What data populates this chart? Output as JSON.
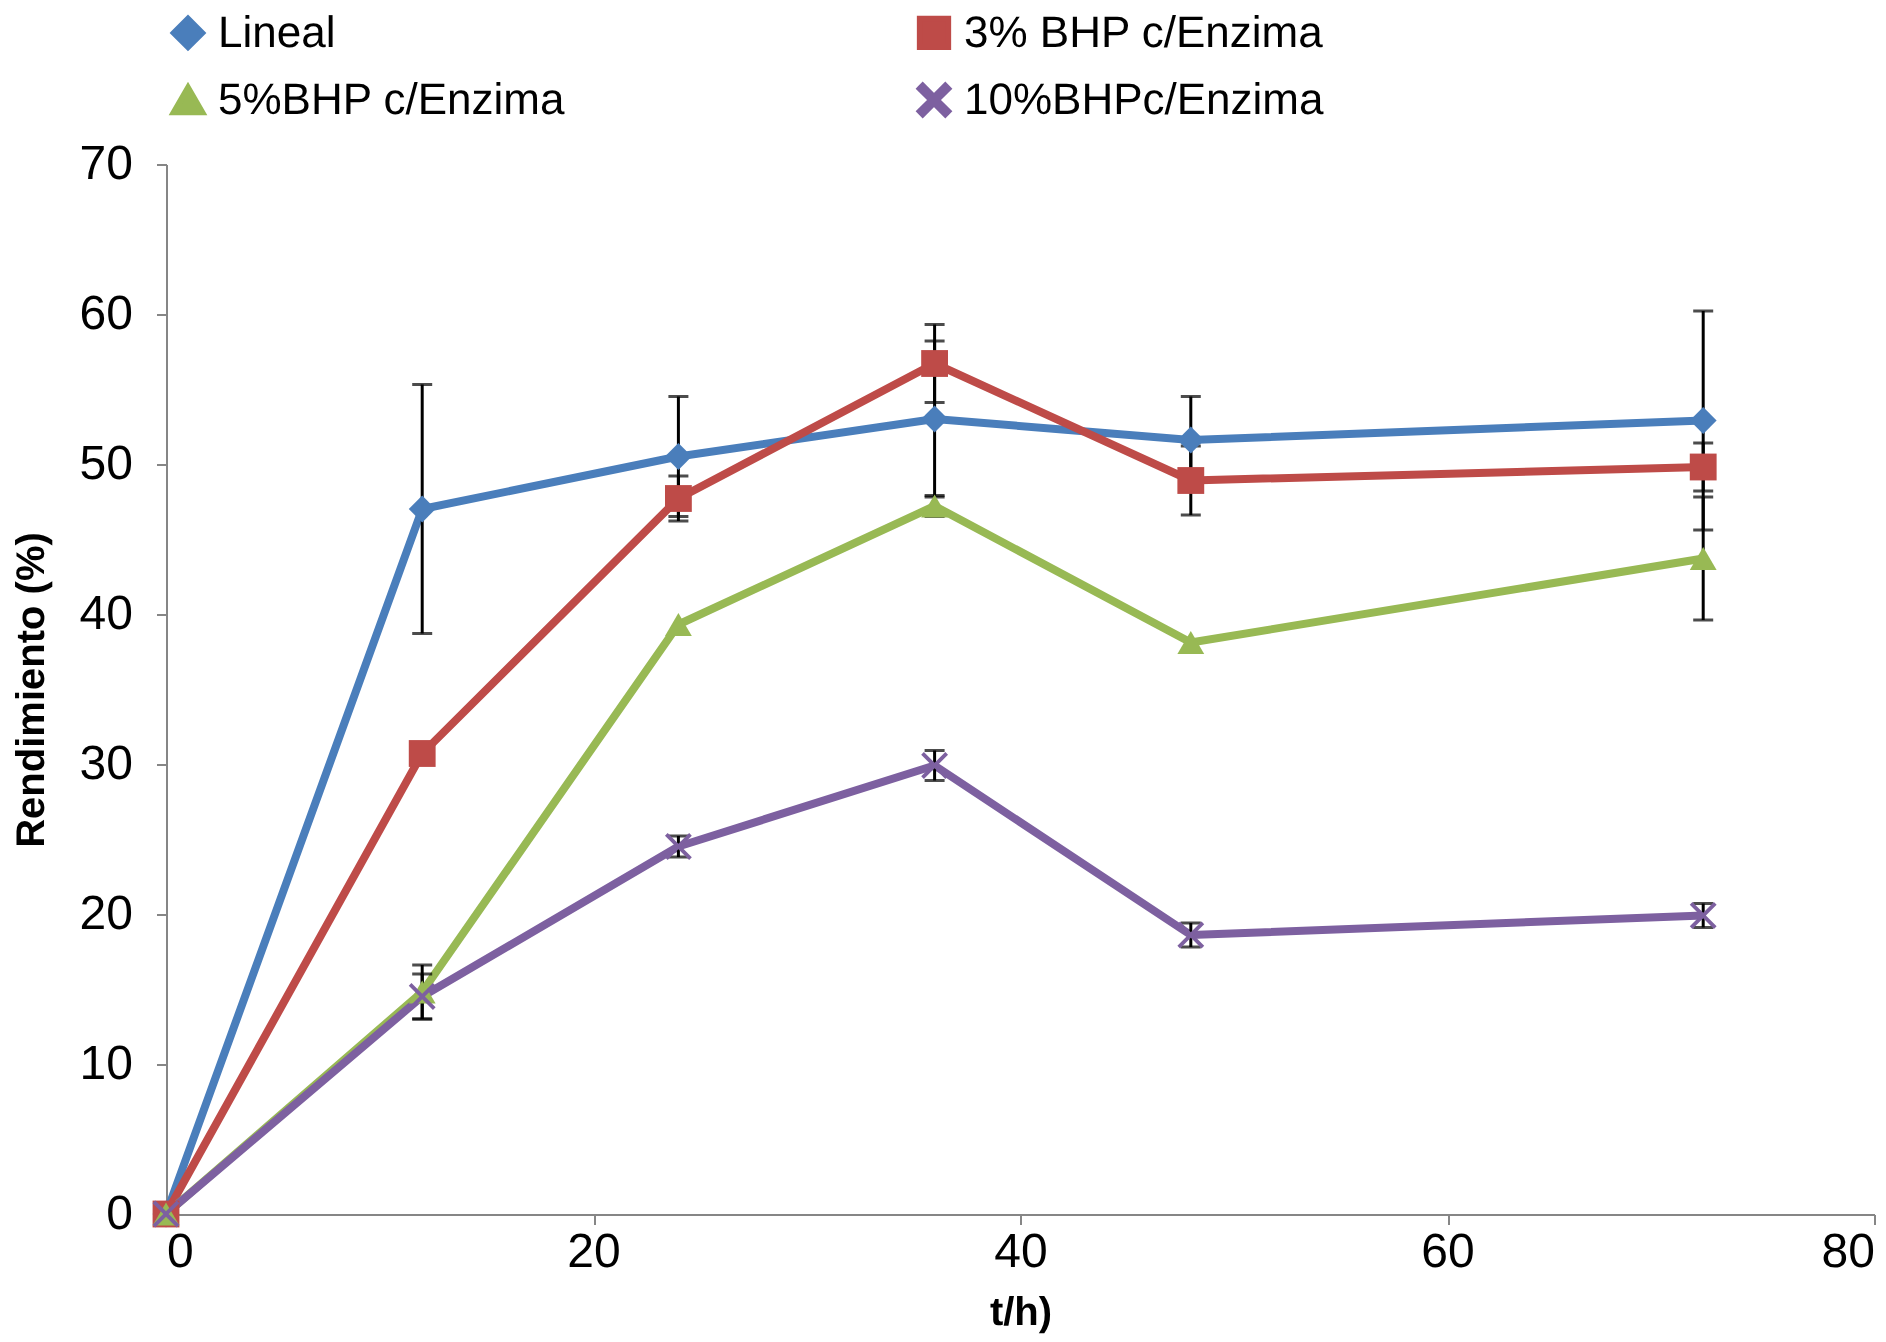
{
  "chart_data": {
    "type": "line",
    "xlabel": "t/h)",
    "ylabel": "Rendimiento (%)",
    "x": [
      0,
      12,
      24,
      36,
      48,
      72
    ],
    "xlim": [
      0,
      80
    ],
    "xticks": [
      0,
      20,
      40,
      60,
      80
    ],
    "ylim": [
      0,
      70
    ],
    "yticks": [
      0,
      10,
      20,
      30,
      40,
      50,
      60,
      70
    ],
    "grid": false,
    "legend": "top",
    "line_style": "solid",
    "series": [
      {
        "name": "Lineal",
        "color": "#4a7ebb",
        "marker": "diamond",
        "values": [
          0,
          47.0,
          50.5,
          53.0,
          51.6,
          52.9
        ],
        "errors": [
          null,
          8.3,
          4.0,
          5.2,
          2.9,
          7.3
        ]
      },
      {
        "name": "3% BHP c/Enzima",
        "color": "#be4b48",
        "marker": "square",
        "values": [
          0,
          30.7,
          47.7,
          56.7,
          48.9,
          49.8
        ],
        "errors": [
          null,
          null,
          1.5,
          2.6,
          2.3,
          1.6
        ]
      },
      {
        "name": "5%BHP c/Enzima",
        "color": "#98b954",
        "marker": "triangle",
        "values": [
          0,
          14.8,
          39.3,
          47.2,
          38.1,
          43.7
        ],
        "errors": [
          null,
          1.8,
          null,
          0.7,
          null,
          4.1
        ]
      },
      {
        "name": "10%BHPc/Enzima",
        "color": "#7d60a0",
        "marker": "cross",
        "values": [
          0,
          14.5,
          24.5,
          29.9,
          18.6,
          19.9
        ],
        "errors": [
          null,
          1.5,
          0.7,
          1.0,
          0.8,
          0.8
        ]
      }
    ]
  }
}
